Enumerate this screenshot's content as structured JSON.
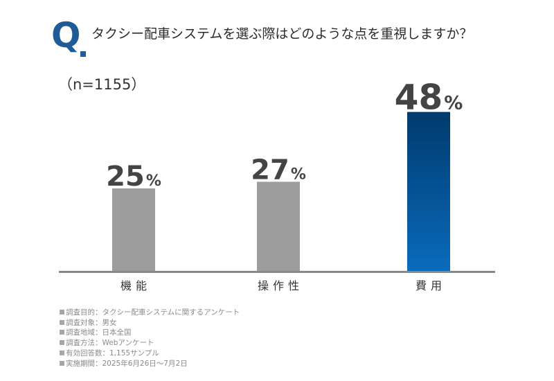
{
  "header": {
    "q_mark": "Q",
    "question": "タクシー配車システムを選ぶ際はどのような点を重視しますか？"
  },
  "sample_size": "（n=1155）",
  "colors": {
    "brand": "#1f5b97",
    "bar_gray": "#9d9d9d",
    "bar_highlight_top": "#003a6c",
    "bar_highlight_bottom": "#0a6bbd",
    "baseline": "#888888"
  },
  "chart_data": {
    "type": "bar",
    "categories": [
      "機能",
      "操作性",
      "費用"
    ],
    "values": [
      25,
      27,
      48
    ],
    "value_labels": [
      "25",
      "27",
      "48"
    ],
    "unit": "%",
    "highlight_index": 2,
    "ylim": [
      0,
      100
    ],
    "grid": false
  },
  "notes": [
    "調査目的：タクシー配車システムに関するアンケート",
    "調査対象：男女",
    "調査地域：日本全国",
    "調査方法：Webアンケート",
    "有効回答数：1,155サンプル",
    "実施期間：2025年6月26日〜7月2日"
  ]
}
